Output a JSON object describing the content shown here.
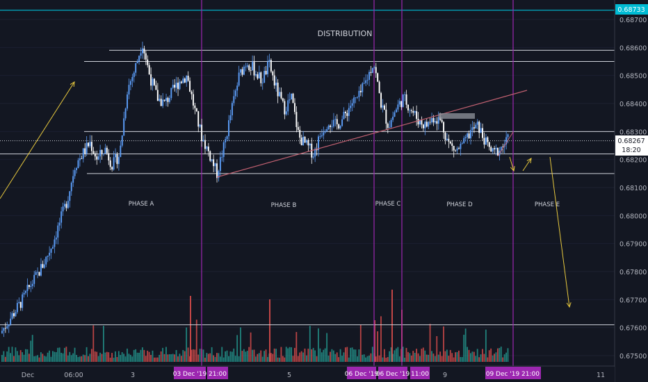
{
  "title": "DISTRIBUTION",
  "colors": {
    "background": "#131722",
    "candle_up": "#5b9cf6",
    "candle_down": "#ffffff",
    "vol_up": "#26a69a",
    "vol_down": "#ef5350",
    "level_line": "#d1d4dc",
    "cyan_line": "#00bcd4",
    "phase_line": "#9c27b0",
    "trend_line": "#c06070",
    "arrow": "#e8c93e",
    "axis_text": "#b2b5be",
    "purple_tag": "#9c27b0"
  },
  "axis": {
    "y_ticks": [
      "0.68700",
      "0.68600",
      "0.68500",
      "0.68400",
      "0.68300",
      "0.68200",
      "0.68100",
      "0.68000",
      "0.67900",
      "0.67800",
      "0.67700",
      "0.67600",
      "0.67500"
    ],
    "x_ticks": [
      "Dec",
      "06:00",
      "3",
      "5",
      "9",
      "11"
    ],
    "current_price": "0.68267",
    "countdown": "18:20",
    "top_price": "0.68733"
  },
  "phases": [
    {
      "label": "PHASE A"
    },
    {
      "label": "PHASE B"
    },
    {
      "label": "PHASE C"
    },
    {
      "label": "PHASE D"
    },
    {
      "label": "PHASE E"
    }
  ],
  "date_tags": [
    {
      "label": "03 Dec '19"
    },
    {
      "label": "21:00"
    },
    {
      "label": "06 Dec '19"
    },
    {
      "label": "06 Dec '19"
    },
    {
      "label": "11:00"
    },
    {
      "label": "09 Dec '19"
    },
    {
      "label": "21:00"
    }
  ],
  "chart_data": {
    "type": "candlestick",
    "title": "DISTRIBUTION",
    "ylim": [
      0.6745,
      0.6874
    ],
    "y_ticks": [
      0.687,
      0.686,
      0.685,
      0.684,
      0.683,
      0.682,
      0.681,
      0.68,
      0.679,
      0.678,
      0.677,
      0.676,
      0.675
    ],
    "x_tick_labels": [
      "Dec",
      "06:00",
      "3",
      "5",
      "9",
      "11"
    ],
    "horizontal_levels": [
      0.68733,
      0.6859,
      0.6855,
      0.683,
      0.6822,
      0.6815,
      0.6761
    ],
    "current_price": 0.68267,
    "close_path": [
      0.6758,
      0.6762,
      0.6766,
      0.677,
      0.6775,
      0.6779,
      0.6784,
      0.679,
      0.6798,
      0.6806,
      0.6818,
      0.6822,
      0.6826,
      0.682,
      0.6824,
      0.6818,
      0.6822,
      0.6845,
      0.6852,
      0.6862,
      0.685,
      0.6842,
      0.684,
      0.6844,
      0.6848,
      0.685,
      0.6838,
      0.6828,
      0.6822,
      0.6815,
      0.6825,
      0.6838,
      0.685,
      0.6855,
      0.6852,
      0.6848,
      0.6854,
      0.6845,
      0.6838,
      0.6842,
      0.6828,
      0.6825,
      0.6822,
      0.683,
      0.6834,
      0.6832,
      0.6835,
      0.684,
      0.6842,
      0.6848,
      0.6855,
      0.684,
      0.6832,
      0.6838,
      0.6842,
      0.6838,
      0.6834,
      0.6832,
      0.6835,
      0.6834,
      0.6826,
      0.6823,
      0.6825,
      0.683,
      0.6832,
      0.6826,
      0.6822,
      0.6824,
      0.6827
    ]
  }
}
